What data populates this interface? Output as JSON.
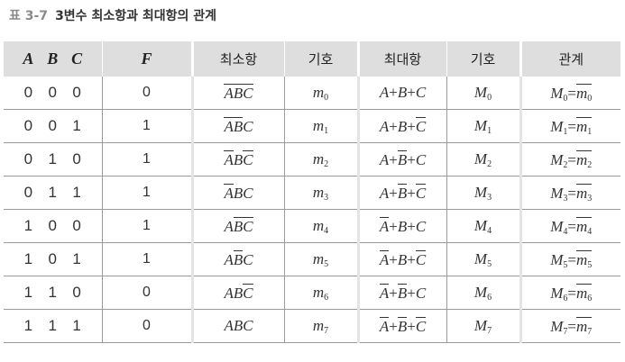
{
  "caption": {
    "label": "표 3-7",
    "title": "3변수 최소항과 최대항의 관계"
  },
  "headers": {
    "a": "A",
    "b": "B",
    "c": "C",
    "f": "F",
    "minterm": "최소항",
    "minterm_symbol": "기호",
    "maxterm": "최대항",
    "maxterm_symbol": "기호",
    "relation": "관계"
  },
  "rows": [
    {
      "a": "0",
      "b": "0",
      "c": "0",
      "f": "0",
      "idx": "0"
    },
    {
      "a": "0",
      "b": "0",
      "c": "1",
      "f": "1",
      "idx": "1"
    },
    {
      "a": "0",
      "b": "1",
      "c": "0",
      "f": "1",
      "idx": "2"
    },
    {
      "a": "0",
      "b": "1",
      "c": "1",
      "f": "1",
      "idx": "3"
    },
    {
      "a": "1",
      "b": "0",
      "c": "0",
      "f": "1",
      "idx": "4"
    },
    {
      "a": "1",
      "b": "0",
      "c": "1",
      "f": "1",
      "idx": "5"
    },
    {
      "a": "1",
      "b": "1",
      "c": "0",
      "f": "0",
      "idx": "6"
    },
    {
      "a": "1",
      "b": "1",
      "c": "1",
      "f": "0",
      "idx": "7"
    }
  ],
  "symbols": {
    "var_a": "A",
    "var_b": "B",
    "var_c": "C",
    "minterm_prefix": "m",
    "maxterm_prefix": "M",
    "plus": "+",
    "equals": "="
  }
}
